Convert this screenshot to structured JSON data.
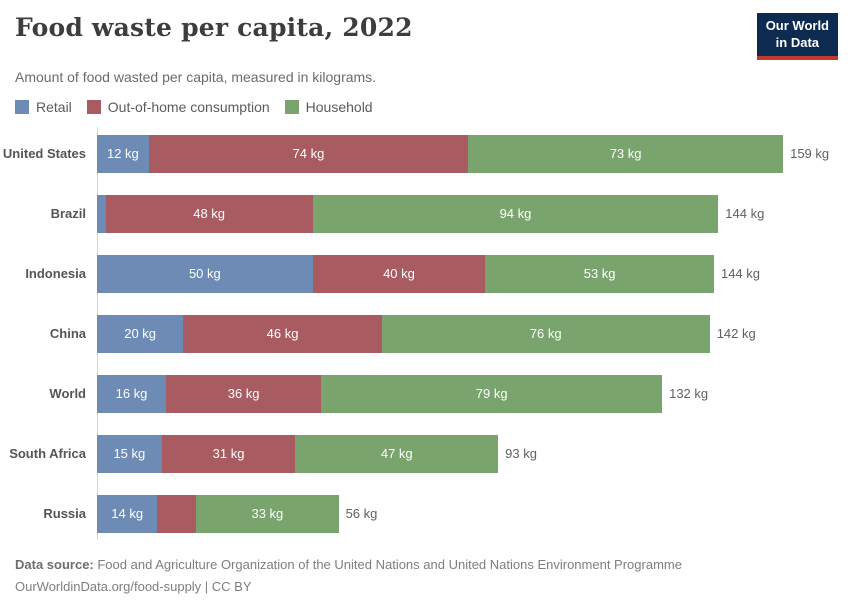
{
  "header": {
    "title": "Food waste per capita, 2022",
    "subtitle": "Amount of food wasted per capita, measured in kilograms.",
    "logo": {
      "line1": "Our World",
      "line2": "in Data",
      "bg_color": "#0d2b51",
      "accent_color": "#c0392b"
    }
  },
  "legend": [
    {
      "key": "retail",
      "label": "Retail",
      "color": "#6d8bb5"
    },
    {
      "key": "out_of_home",
      "label": "Out-of-home consumption",
      "color": "#a85c62"
    },
    {
      "key": "household",
      "label": "Household",
      "color": "#7aa46e"
    }
  ],
  "chart_data": {
    "type": "bar",
    "orientation": "horizontal",
    "stacked": true,
    "unit": "kg",
    "title": "Food waste per capita, 2022",
    "subtitle": "Amount of food wasted per capita, measured in kilograms.",
    "series_names": [
      "Retail",
      "Out-of-home consumption",
      "Household"
    ],
    "colors": {
      "retail": "#6d8bb5",
      "out_of_home": "#a85c62",
      "household": "#7aa46e"
    },
    "xlim_kg": [
      0,
      159
    ],
    "grid": false,
    "categories": [
      "United States",
      "Brazil",
      "Indonesia",
      "China",
      "World",
      "South Africa",
      "Russia"
    ],
    "rows": [
      {
        "country": "United States",
        "retail": 12,
        "out_of_home": 74,
        "household": 73,
        "total_label": "159 kg",
        "segment_labels": [
          "12 kg",
          "74 kg",
          "73 kg"
        ]
      },
      {
        "country": "Brazil",
        "retail": 2,
        "out_of_home": 48,
        "household": 94,
        "total_label": "144 kg",
        "segment_labels": [
          null,
          "48 kg",
          "94 kg"
        ]
      },
      {
        "country": "Indonesia",
        "retail": 50,
        "out_of_home": 40,
        "household": 53,
        "total_label": "144 kg",
        "segment_labels": [
          "50 kg",
          "40 kg",
          "53 kg"
        ]
      },
      {
        "country": "China",
        "retail": 20,
        "out_of_home": 46,
        "household": 76,
        "total_label": "142 kg",
        "segment_labels": [
          "20 kg",
          "46 kg",
          "76 kg"
        ]
      },
      {
        "country": "World",
        "retail": 16,
        "out_of_home": 36,
        "household": 79,
        "total_label": "132 kg",
        "segment_labels": [
          "16 kg",
          "36 kg",
          "79 kg"
        ]
      },
      {
        "country": "South Africa",
        "retail": 15,
        "out_of_home": 31,
        "household": 47,
        "total_label": "93 kg",
        "segment_labels": [
          "15 kg",
          "31 kg",
          "47 kg"
        ]
      },
      {
        "country": "Russia",
        "retail": 14,
        "out_of_home": 9,
        "household": 33,
        "total_label": "56 kg",
        "segment_labels": [
          "14 kg",
          null,
          "33 kg"
        ]
      }
    ]
  },
  "footer": {
    "source_label": "Data source:",
    "source_text": " Food and Agriculture Organization of the United Nations and United Nations Environment Programme",
    "note": "OurWorldinData.org/food-supply | CC BY"
  }
}
